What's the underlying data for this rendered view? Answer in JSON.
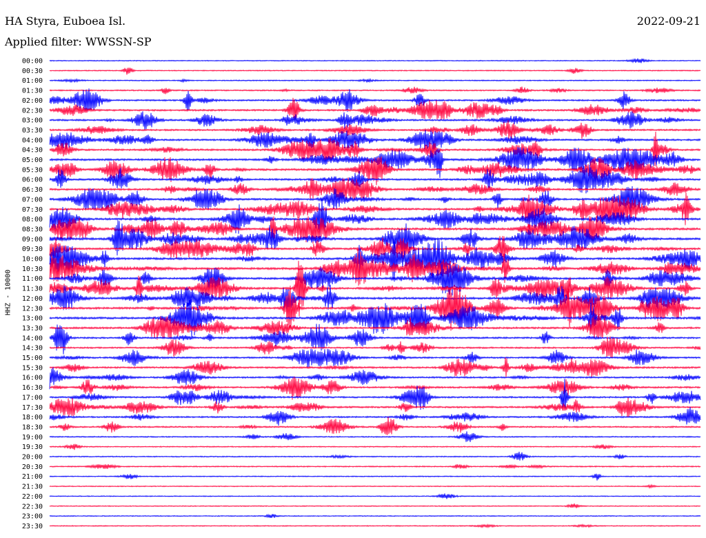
{
  "header": {
    "station": "HA Styra, Euboea Isl.",
    "date": "2022-09-21",
    "filter": "Applied filter: WWSSN-SP"
  },
  "ylabel": "HHZ - 10000",
  "colors": {
    "even_trace": "#0000ff",
    "odd_trace": "#ff003c",
    "background": "#ffffff",
    "text": "#000000"
  },
  "chart_data": {
    "type": "line",
    "subtype": "helicorder",
    "x_span_minutes_per_line": 30,
    "rows": [
      {
        "time": "00:00",
        "color": "blue",
        "activity": 0.05
      },
      {
        "time": "00:30",
        "color": "red",
        "activity": 0.1
      },
      {
        "time": "01:00",
        "color": "blue",
        "activity": 0.15
      },
      {
        "time": "01:30",
        "color": "red",
        "activity": 0.25
      },
      {
        "time": "02:00",
        "color": "blue",
        "activity": 0.45
      },
      {
        "time": "02:30",
        "color": "red",
        "activity": 0.55
      },
      {
        "time": "03:00",
        "color": "blue",
        "activity": 0.55
      },
      {
        "time": "03:30",
        "color": "red",
        "activity": 0.55
      },
      {
        "time": "04:00",
        "color": "blue",
        "activity": 0.6
      },
      {
        "time": "04:30",
        "color": "red",
        "activity": 0.6
      },
      {
        "time": "05:00",
        "color": "blue",
        "activity": 0.7
      },
      {
        "time": "05:30",
        "color": "red",
        "activity": 0.75
      },
      {
        "time": "06:00",
        "color": "blue",
        "activity": 0.65
      },
      {
        "time": "06:30",
        "color": "red",
        "activity": 0.65
      },
      {
        "time": "07:00",
        "color": "blue",
        "activity": 0.7
      },
      {
        "time": "07:30",
        "color": "red",
        "activity": 0.75
      },
      {
        "time": "08:00",
        "color": "blue",
        "activity": 0.75
      },
      {
        "time": "08:30",
        "color": "red",
        "activity": 0.85
      },
      {
        "time": "09:00",
        "color": "blue",
        "activity": 0.85
      },
      {
        "time": "09:30",
        "color": "red",
        "activity": 0.7
      },
      {
        "time": "10:00",
        "color": "blue",
        "activity": 0.8
      },
      {
        "time": "10:30",
        "color": "red",
        "activity": 0.85
      },
      {
        "time": "11:00",
        "color": "blue",
        "activity": 0.75
      },
      {
        "time": "11:30",
        "color": "red",
        "activity": 0.75
      },
      {
        "time": "12:00",
        "color": "blue",
        "activity": 0.8
      },
      {
        "time": "12:30",
        "color": "red",
        "activity": 0.8
      },
      {
        "time": "13:00",
        "color": "blue",
        "activity": 0.8
      },
      {
        "time": "13:30",
        "color": "red",
        "activity": 0.65
      },
      {
        "time": "14:00",
        "color": "blue",
        "activity": 0.55
      },
      {
        "time": "14:30",
        "color": "red",
        "activity": 0.45
      },
      {
        "time": "15:00",
        "color": "blue",
        "activity": 0.5
      },
      {
        "time": "15:30",
        "color": "red",
        "activity": 0.55
      },
      {
        "time": "16:00",
        "color": "blue",
        "activity": 0.5
      },
      {
        "time": "16:30",
        "color": "red",
        "activity": 0.55
      },
      {
        "time": "17:00",
        "color": "blue",
        "activity": 0.5
      },
      {
        "time": "17:30",
        "color": "red",
        "activity": 0.55
      },
      {
        "time": "18:00",
        "color": "blue",
        "activity": 0.45
      },
      {
        "time": "18:30",
        "color": "red",
        "activity": 0.4
      },
      {
        "time": "19:00",
        "color": "blue",
        "activity": 0.2
      },
      {
        "time": "19:30",
        "color": "red",
        "activity": 0.15
      },
      {
        "time": "20:00",
        "color": "blue",
        "activity": 0.15
      },
      {
        "time": "20:30",
        "color": "red",
        "activity": 0.2
      },
      {
        "time": "21:00",
        "color": "blue",
        "activity": 0.1
      },
      {
        "time": "21:30",
        "color": "red",
        "activity": 0.05
      },
      {
        "time": "22:00",
        "color": "blue",
        "activity": 0.05
      },
      {
        "time": "22:30",
        "color": "red",
        "activity": 0.05
      },
      {
        "time": "23:00",
        "color": "blue",
        "activity": 0.05
      },
      {
        "time": "23:30",
        "color": "red",
        "activity": 0.08
      }
    ]
  }
}
